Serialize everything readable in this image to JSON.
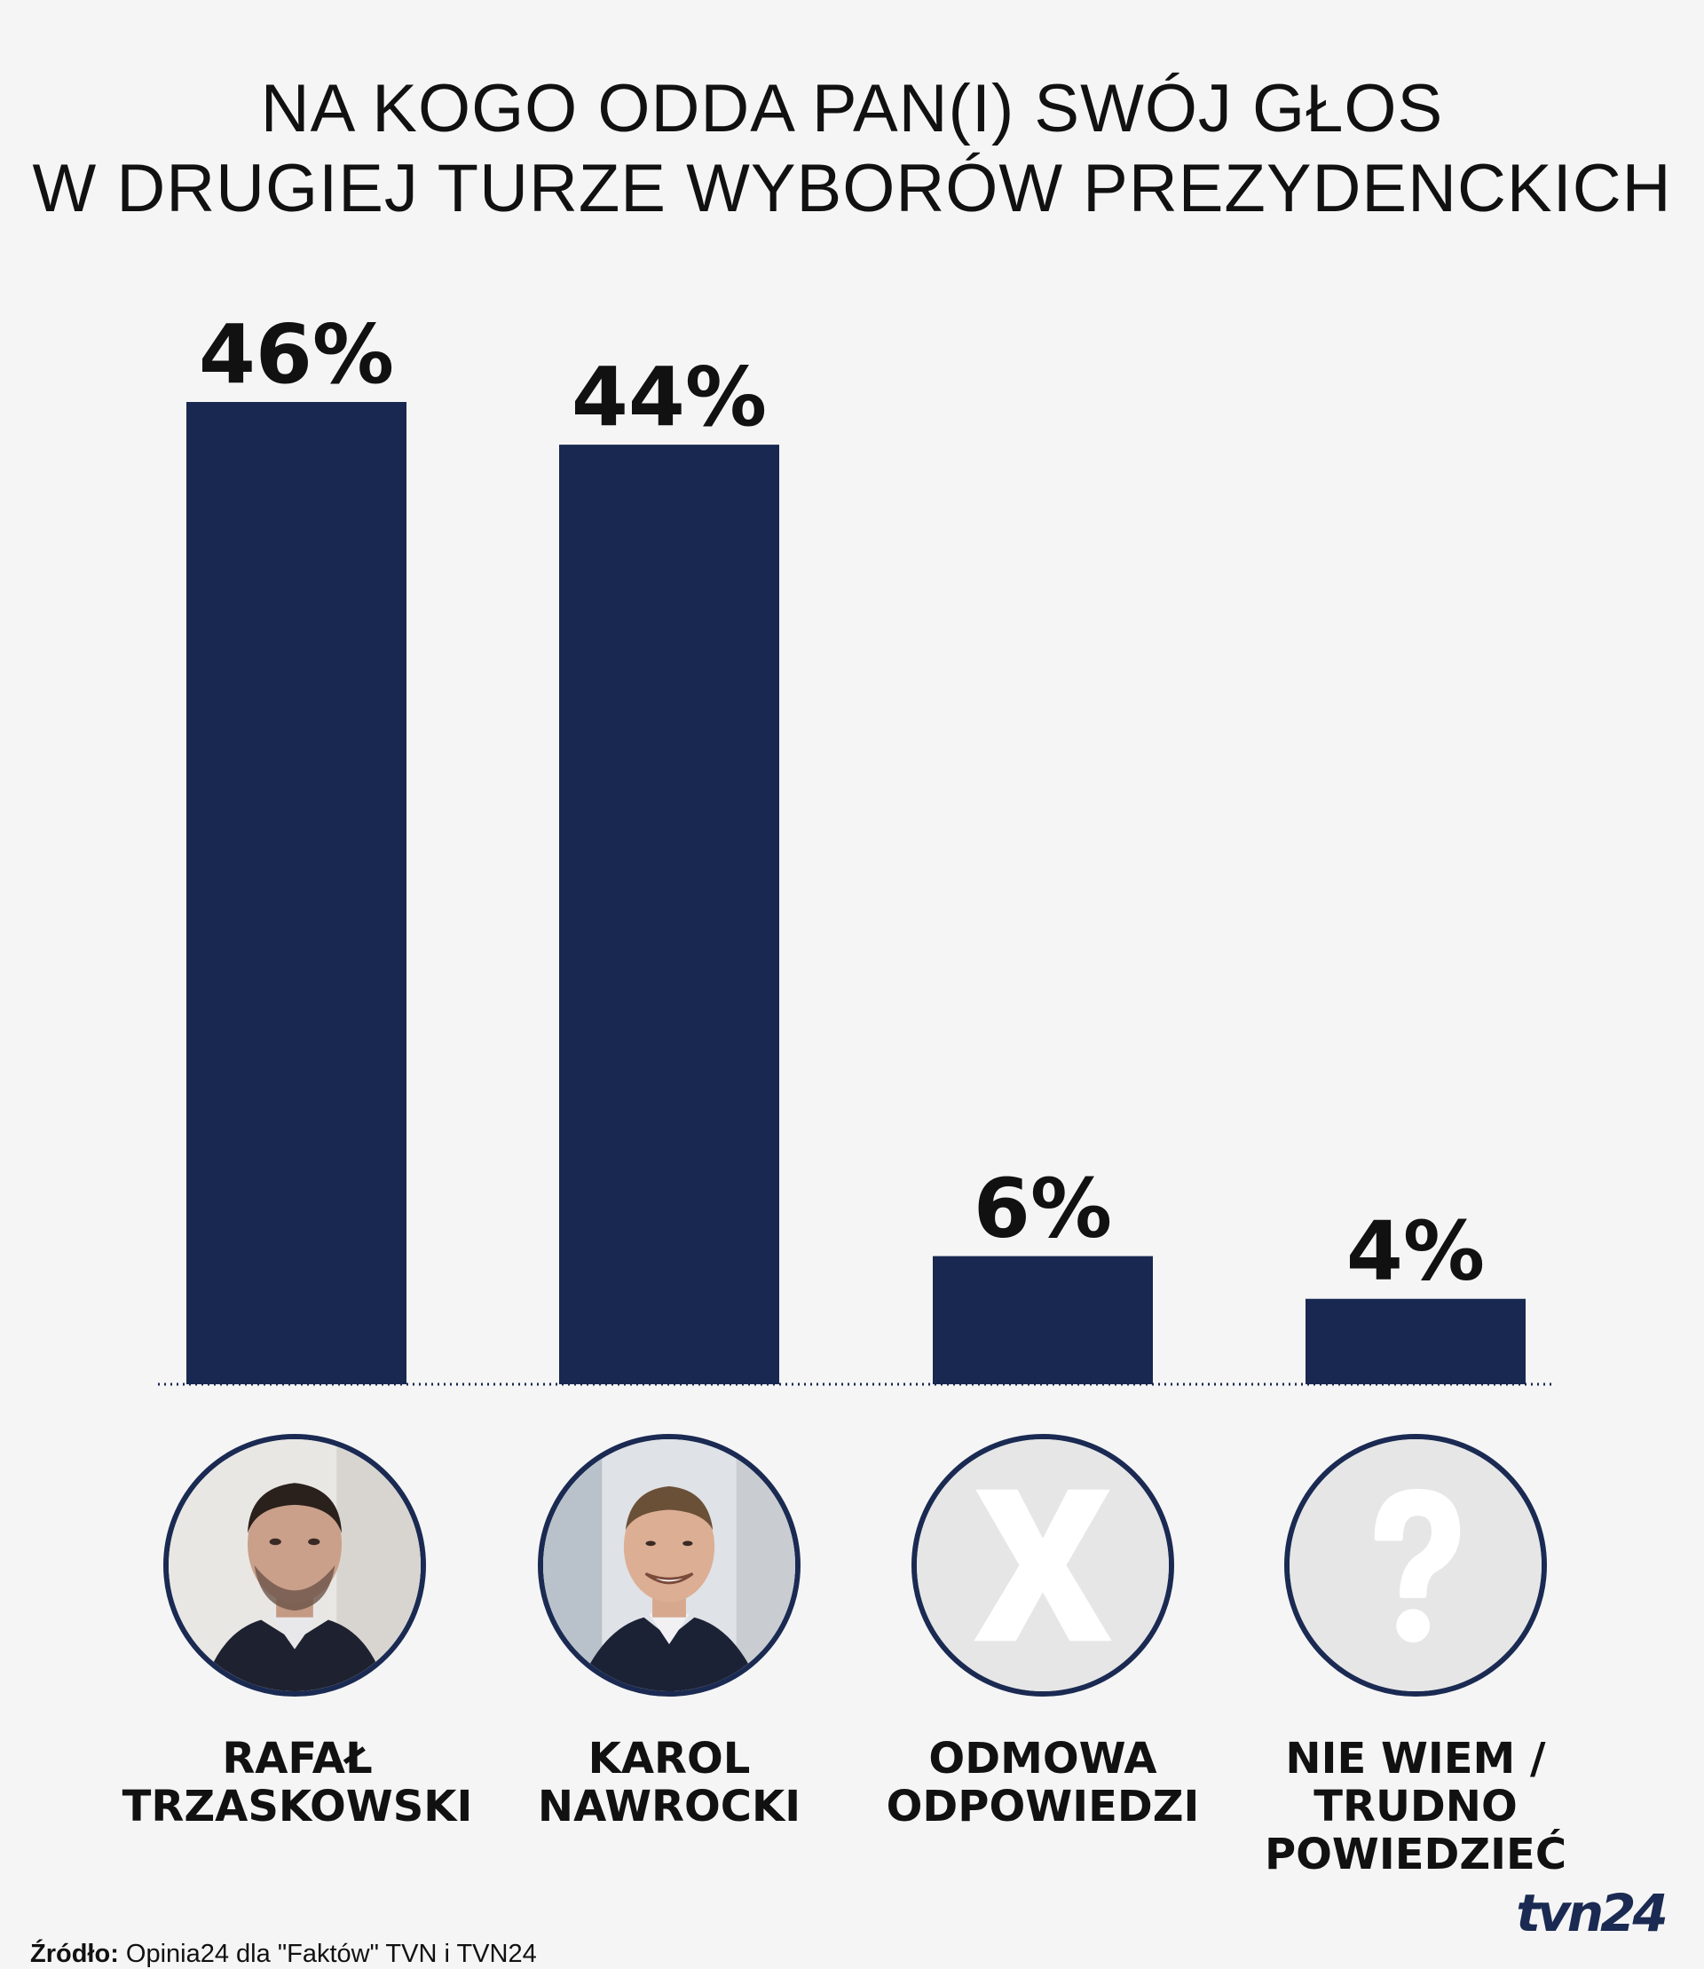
{
  "title": {
    "line1": "NA KOGO ODDA PAN(I) SWÓJ GŁOS",
    "line2": "W DRUGIEJ TURZE WYBORÓW PREZYDENCKICH"
  },
  "chart_data": {
    "type": "bar",
    "title": "NA KOGO ODDA PAN(I) SWÓJ GŁOS W DRUGIEJ TURZE WYBORÓW PREZYDENCKICH",
    "categories": [
      "RAFAŁ TRZASKOWSKI",
      "KAROL NAWROCKI",
      "ODMOWA ODPOWIEDZI",
      "NIE WIEM / TRUDNO POWIEDZIEĆ"
    ],
    "values": [
      46,
      44,
      6,
      4
    ],
    "value_labels": [
      "46%",
      "44%",
      "6%",
      "4%"
    ],
    "unit": "%",
    "ylim": [
      0,
      46
    ],
    "grid": false,
    "legend": "none",
    "bar_color": "#182850",
    "baseline_style": "dotted"
  },
  "categories": [
    {
      "line1": "RAFAŁ",
      "line2": "TRZASKOWSKI",
      "line3": "",
      "icon": "portrait-photo"
    },
    {
      "line1": "KAROL",
      "line2": "NAWROCKI",
      "line3": "",
      "icon": "portrait-photo"
    },
    {
      "line1": "ODMOWA",
      "line2": "ODPOWIEDZI",
      "line3": "",
      "icon": "x-icon"
    },
    {
      "line1": "NIE WIEM /",
      "line2": "TRUDNO",
      "line3": "POWIEDZIEĆ",
      "icon": "question-mark-icon"
    }
  ],
  "source": {
    "label": "Źródło:",
    "text": " Opinia24 dla \"Faktów\" TVN i TVN24"
  },
  "logo": {
    "text": "tvn24",
    "color": "#1a2a52"
  },
  "colors": {
    "background": "#f5f5f5",
    "bar": "#182850",
    "avatar_border": "#1a2a52",
    "icon_fill": "#ffffff",
    "icon_bg": "#e6e6e6"
  }
}
